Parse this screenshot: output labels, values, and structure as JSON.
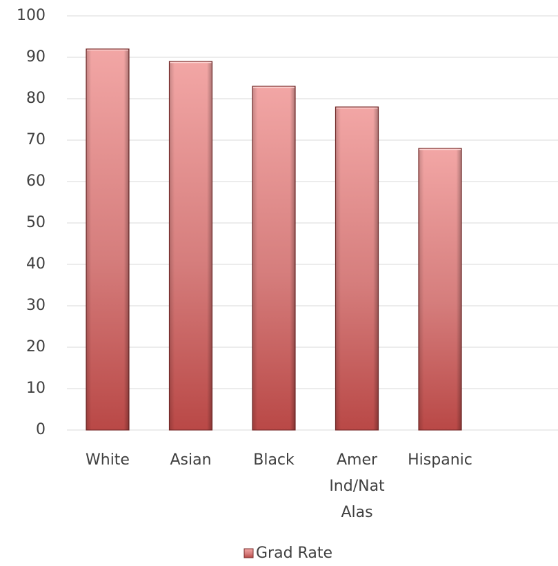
{
  "chart_data": {
    "type": "bar",
    "categories": [
      [
        "White"
      ],
      [
        "Asian"
      ],
      [
        "Black"
      ],
      [
        "Amer",
        "Ind/Nat",
        "Alas"
      ],
      [
        "Hispanic"
      ]
    ],
    "series": [
      {
        "name": "Grad Rate",
        "values": [
          92,
          89,
          83,
          78,
          68
        ]
      }
    ],
    "y_ticks": [
      "0",
      "10",
      "20",
      "30",
      "40",
      "50",
      "60",
      "70",
      "80",
      "90",
      "100"
    ],
    "ylim": [
      0,
      100
    ],
    "grid": true,
    "legend": {
      "position": "bottom",
      "labels": [
        "Grad Rate"
      ]
    },
    "colors": {
      "bar_top": "#f2a6a5",
      "bar_bottom": "#b94846",
      "bar_edge": "#7a2c2b"
    }
  }
}
